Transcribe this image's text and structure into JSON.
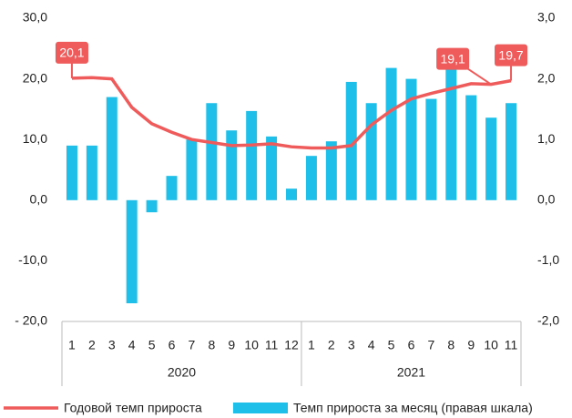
{
  "chart_data": {
    "type": "combo",
    "categories": [
      "1",
      "2",
      "3",
      "4",
      "5",
      "6",
      "7",
      "8",
      "9",
      "10",
      "11",
      "12",
      "1",
      "2",
      "3",
      "4",
      "5",
      "6",
      "7",
      "8",
      "9",
      "10",
      "11"
    ],
    "group_labels": [
      "2020",
      "2021"
    ],
    "series": [
      {
        "name": "Годовой темп прироста",
        "type": "line",
        "color": "#ef5b5b",
        "values": [
          20.1,
          20.2,
          20.0,
          15.3,
          12.6,
          11.2,
          10.0,
          9.5,
          9.0,
          9.1,
          9.3,
          8.8,
          8.6,
          8.6,
          9.0,
          12.4,
          14.8,
          16.7,
          17.6,
          18.4,
          19.2,
          19.1,
          19.7
        ],
        "value_labels": [
          "20,1",
          null,
          null,
          null,
          null,
          null,
          null,
          null,
          null,
          null,
          null,
          null,
          null,
          null,
          null,
          null,
          null,
          null,
          null,
          null,
          null,
          "19,1",
          "19,7"
        ]
      },
      {
        "name": "Темп прироста за месяц (правая шкала)",
        "type": "bar",
        "axis": "y2",
        "color": "#1ec0ea",
        "values": [
          0.9,
          0.9,
          1.7,
          -1.7,
          -0.2,
          0.4,
          1.0,
          1.6,
          1.15,
          1.47,
          1.05,
          0.19,
          0.73,
          0.97,
          1.95,
          1.6,
          2.18,
          2.0,
          1.67,
          2.22,
          1.73,
          1.36,
          1.6
        ]
      }
    ],
    "ylim": [
      -20,
      30
    ],
    "yticks": [
      {
        "value": 30,
        "label": "30,0"
      },
      {
        "value": 20,
        "label": "20,0"
      },
      {
        "value": 10,
        "label": "10,0"
      },
      {
        "value": 0,
        "label": "0,0"
      },
      {
        "value": -10,
        "label": "-10,0"
      },
      {
        "value": -20,
        "label": "- 20,0"
      }
    ],
    "y2lim": [
      -2,
      3
    ],
    "y2ticks": [
      {
        "value": 3,
        "label": "3,0"
      },
      {
        "value": 2,
        "label": "2,0"
      },
      {
        "value": 1,
        "label": "1,0"
      },
      {
        "value": 0,
        "label": "0,0"
      },
      {
        "value": -1,
        "label": "-1,0"
      },
      {
        "value": -2,
        "label": "-2,0"
      }
    ],
    "legend": "bottom"
  }
}
